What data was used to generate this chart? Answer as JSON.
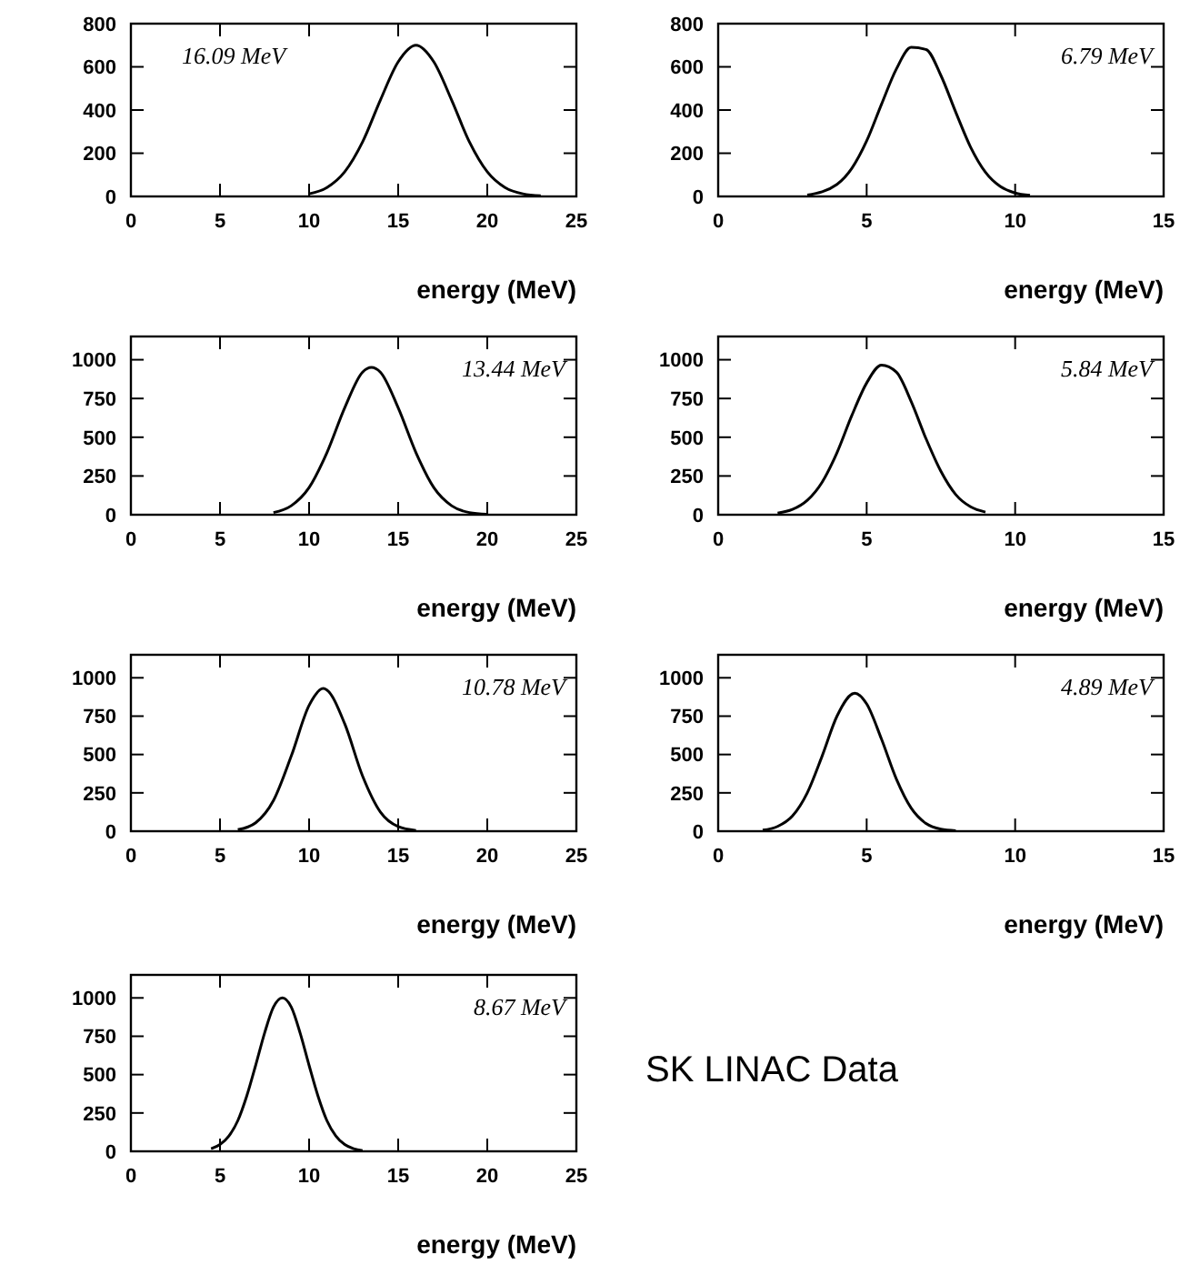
{
  "chart_data": [
    {
      "type": "line",
      "xlabel": "energy (MeV)",
      "xlim": [
        0,
        25
      ],
      "xticks": [
        0,
        5,
        10,
        15,
        20,
        25
      ],
      "ylim": [
        0,
        800
      ],
      "yticks": [
        0,
        200,
        400,
        600,
        800
      ],
      "annotations": [
        "16.09 MeV"
      ],
      "series": [
        {
          "color": "#000000",
          "x": [
            10,
            11,
            12,
            13,
            14,
            15,
            16,
            17,
            18,
            19,
            20,
            21,
            22,
            23
          ],
          "values": [
            12,
            41,
            114,
            252,
            446,
            623,
            700,
            623,
            446,
            252,
            114,
            41,
            12,
            3
          ]
        }
      ]
    },
    {
      "type": "line",
      "xlabel": "energy (MeV)",
      "xlim": [
        0,
        15
      ],
      "xticks": [
        0,
        5,
        10,
        15
      ],
      "ylim": [
        0,
        800
      ],
      "yticks": [
        0,
        200,
        400,
        600,
        800
      ],
      "annotations": [
        "6.79 MeV"
      ],
      "series": [
        {
          "color": "#000000",
          "x": [
            3,
            4,
            4.5,
            5,
            5.5,
            6,
            6.5,
            7,
            7.5,
            8,
            8.5,
            9,
            9.5,
            10,
            10.5
          ],
          "values": [
            6,
            56,
            130,
            257,
            427,
            590,
            690,
            680,
            560,
            390,
            228,
            112,
            46,
            16,
            5
          ]
        }
      ]
    },
    {
      "type": "line",
      "xlabel": "energy (MeV)",
      "xlim": [
        0,
        25
      ],
      "xticks": [
        0,
        5,
        10,
        15,
        20,
        25
      ],
      "ylim": [
        0,
        1150
      ],
      "yticks": [
        0,
        250,
        500,
        750,
        1000
      ],
      "annotations": [
        "13.44 MeV"
      ],
      "series": [
        {
          "color": "#000000",
          "x": [
            8,
            9,
            10,
            11,
            12,
            13,
            13.5,
            14,
            15,
            16,
            17,
            18,
            19,
            20
          ],
          "values": [
            14,
            58,
            175,
            400,
            690,
            920,
            950,
            920,
            690,
            400,
            175,
            58,
            14,
            3
          ]
        }
      ]
    },
    {
      "type": "line",
      "xlabel": "energy (MeV)",
      "xlim": [
        0,
        15
      ],
      "xticks": [
        0,
        5,
        10,
        15
      ],
      "ylim": [
        0,
        1150
      ],
      "yticks": [
        0,
        250,
        500,
        750,
        1000
      ],
      "annotations": [
        "5.84 MeV"
      ],
      "series": [
        {
          "color": "#000000",
          "x": [
            2,
            2.5,
            3,
            3.5,
            4,
            4.5,
            5,
            5.5,
            6,
            6.5,
            7,
            7.5,
            8,
            8.5,
            9
          ],
          "values": [
            11,
            34,
            93,
            210,
            400,
            640,
            850,
            965,
            920,
            730,
            490,
            280,
            130,
            51,
            17
          ]
        }
      ]
    },
    {
      "type": "line",
      "xlabel": "energy (MeV)",
      "xlim": [
        0,
        25
      ],
      "xticks": [
        0,
        5,
        10,
        15,
        20,
        25
      ],
      "ylim": [
        0,
        1150
      ],
      "yticks": [
        0,
        250,
        500,
        750,
        1000
      ],
      "annotations": [
        "10.78 MeV"
      ],
      "series": [
        {
          "color": "#000000",
          "x": [
            6,
            7,
            8,
            9,
            10,
            10.8,
            11,
            12,
            13,
            14,
            15,
            16
          ],
          "values": [
            10,
            55,
            200,
            490,
            820,
            930,
            920,
            700,
            360,
            125,
            30,
            5
          ]
        }
      ]
    },
    {
      "type": "line",
      "xlabel": "energy (MeV)",
      "xlim": [
        0,
        15
      ],
      "xticks": [
        0,
        5,
        10,
        15
      ],
      "ylim": [
        0,
        1150
      ],
      "yticks": [
        0,
        250,
        500,
        750,
        1000
      ],
      "annotations": [
        "4.89 MeV"
      ],
      "series": [
        {
          "color": "#000000",
          "x": [
            1.5,
            2,
            2.5,
            3,
            3.5,
            4,
            4.6,
            5,
            5.5,
            6,
            6.5,
            7,
            7.5,
            8
          ],
          "values": [
            7,
            31,
            99,
            250,
            490,
            750,
            900,
            830,
            600,
            340,
            150,
            50,
            13,
            3
          ]
        }
      ]
    },
    {
      "type": "line",
      "xlabel": "energy (MeV)",
      "xlim": [
        0,
        25
      ],
      "xticks": [
        0,
        5,
        10,
        15,
        20,
        25
      ],
      "ylim": [
        0,
        1150
      ],
      "yticks": [
        0,
        250,
        500,
        750,
        1000
      ],
      "annotations": [
        "8.67 MeV",
        "SK LINAC Data"
      ],
      "series": [
        {
          "color": "#000000",
          "x": [
            4.5,
            5,
            5.5,
            6,
            6.5,
            7,
            7.5,
            8,
            8.5,
            9,
            9.5,
            10,
            10.5,
            11,
            11.5,
            12,
            12.5,
            13
          ],
          "values": [
            17,
            44,
            100,
            200,
            360,
            560,
            770,
            940,
            1000,
            940,
            770,
            560,
            360,
            200,
            100,
            44,
            17,
            5
          ]
        }
      ]
    }
  ]
}
